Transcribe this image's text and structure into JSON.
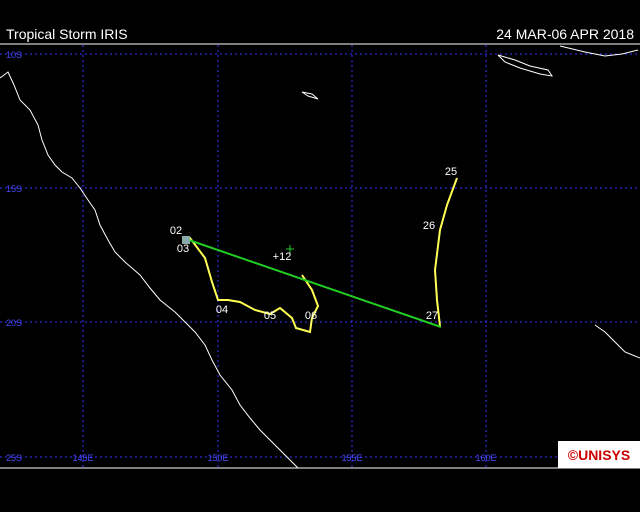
{
  "header": {
    "title": "Tropical Storm IRIS",
    "dates": "24 MAR-06 APR 2018"
  },
  "map": {
    "lat_labels": [
      "10S",
      "15S",
      "20S",
      "25S"
    ],
    "lon_labels": [
      "145E",
      "150E",
      "155E",
      "160E"
    ],
    "track_labels": [
      "25",
      "26",
      "27",
      "02",
      "03",
      "04",
      "05",
      "06",
      "+12"
    ],
    "logo": "©UNISYS"
  }
}
